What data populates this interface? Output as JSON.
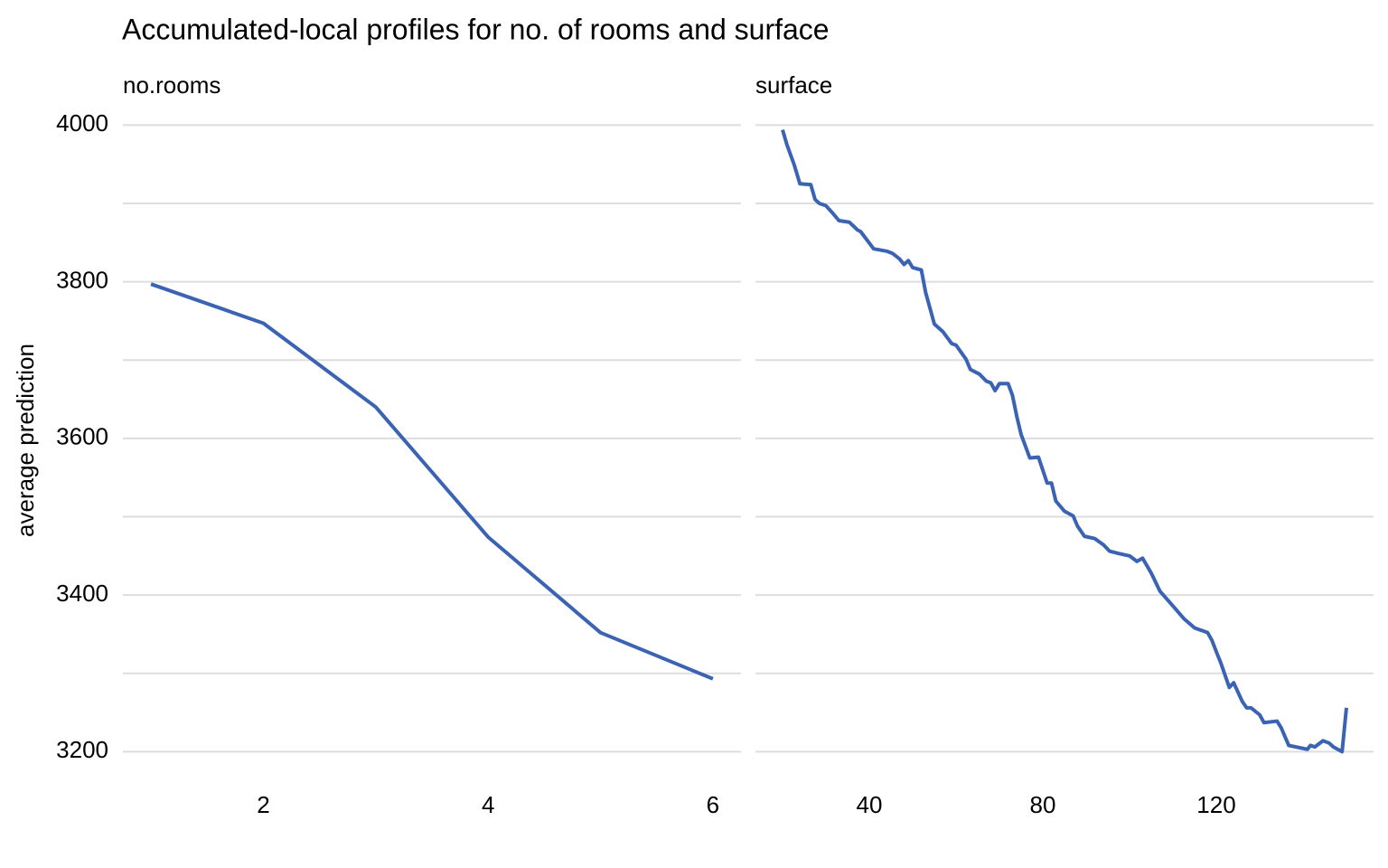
{
  "title": "Accumulated-local profiles for no. of rooms and surface",
  "chart_data": [
    {
      "type": "line",
      "title": "no.rooms",
      "ylabel": "average prediction",
      "color": "#3b63b3",
      "x": [
        1,
        2,
        3,
        4,
        5,
        6
      ],
      "values": [
        3797,
        3747,
        3640,
        3474,
        3352,
        3293
      ],
      "xlim": [
        0.75,
        6.25
      ],
      "xticks": [
        2,
        4,
        6
      ],
      "ylim": [
        3160,
        4020
      ],
      "yticks": [
        3200,
        3400,
        3600,
        3800,
        4000
      ],
      "minor_yticks": [
        3300,
        3500,
        3700,
        3900
      ],
      "grid": true,
      "yticklabels": true
    },
    {
      "type": "line",
      "title": "surface",
      "color": "#3b63b3",
      "x": [
        20,
        21,
        22.7,
        24,
        26.5,
        27.5,
        28.5,
        30,
        31.5,
        33,
        35.4,
        37.3,
        38,
        41,
        44,
        45.4,
        47,
        48,
        49,
        50,
        52,
        53,
        55,
        57,
        59,
        60,
        62.3,
        63.3,
        65.4,
        67,
        68,
        69,
        70,
        72,
        73,
        74,
        75,
        77,
        79,
        81,
        82,
        83,
        85,
        87,
        88,
        89.6,
        92,
        94,
        95.4,
        97.5,
        100,
        101.7,
        103,
        105,
        107,
        110,
        112.5,
        115,
        118,
        119,
        120.4,
        121,
        123,
        124,
        126,
        127,
        128,
        130,
        131,
        134,
        135,
        136.7,
        141,
        141.7,
        142.7,
        144.6,
        146,
        147,
        149,
        150
      ],
      "values": [
        3994,
        3975,
        3949,
        3925,
        3924,
        3905,
        3900,
        3897,
        3888,
        3878,
        3876,
        3866,
        3864,
        3842,
        3839,
        3836,
        3829,
        3822,
        3827,
        3818,
        3815,
        3786,
        3746,
        3736,
        3721,
        3719,
        3701,
        3688,
        3682,
        3673,
        3671,
        3661,
        3670,
        3670,
        3655,
        3628,
        3605,
        3575,
        3576,
        3543,
        3543,
        3520,
        3507,
        3501,
        3488,
        3475,
        3472,
        3464,
        3456,
        3453,
        3450,
        3443,
        3447,
        3428,
        3405,
        3386,
        3370,
        3358,
        3352,
        3342,
        3322,
        3314,
        3282,
        3288,
        3264,
        3256,
        3256,
        3247,
        3237,
        3239,
        3230,
        3208,
        3203,
        3208,
        3206,
        3214,
        3211,
        3206,
        3200,
        3256
      ],
      "xlim": [
        13.75,
        156.25
      ],
      "xticks": [
        40,
        80,
        120
      ],
      "ylim": [
        3160,
        4020
      ],
      "yticks": [
        3200,
        3400,
        3600,
        3800,
        4000
      ],
      "minor_yticks": [
        3300,
        3500,
        3700,
        3900
      ],
      "grid": true,
      "yticklabels": false
    }
  ]
}
